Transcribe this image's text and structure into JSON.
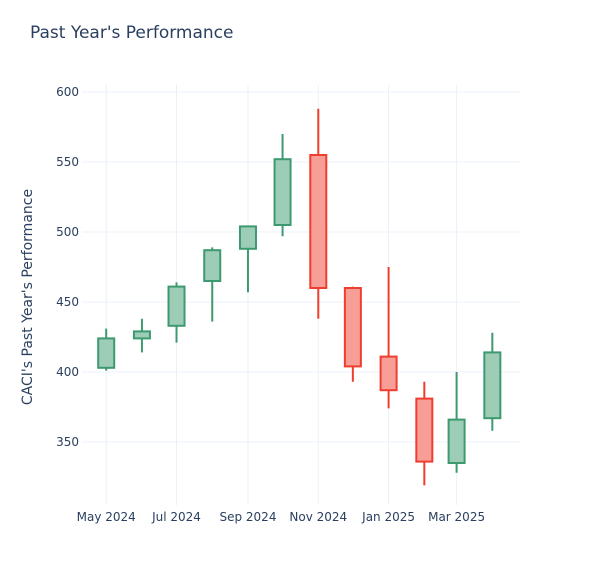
{
  "chart_data": {
    "type": "candlestick",
    "title": "Past Year's Performance",
    "ylabel": "CACI's Past Year's Performance",
    "xlabel": "",
    "ylim": [
      305,
      605
    ],
    "yticks": [
      350,
      400,
      450,
      500,
      550,
      600
    ],
    "xlim": [
      "2024-04-10",
      "2025-04-25"
    ],
    "xticks": [
      {
        "date": "2024-05-01",
        "label": "May 2024"
      },
      {
        "date": "2024-07-01",
        "label": "Jul 2024"
      },
      {
        "date": "2024-09-01",
        "label": "Sep 2024"
      },
      {
        "date": "2024-11-01",
        "label": "Nov 2024"
      },
      {
        "date": "2025-01-01",
        "label": "Jan 2025"
      },
      {
        "date": "2025-03-01",
        "label": "Mar 2025"
      }
    ],
    "colors": {
      "increasing_line": "#3d9970",
      "increasing_fill": "#9ecdb7",
      "decreasing_line": "#ef3e2f",
      "decreasing_fill": "#f79e97",
      "grid": "#ebf0f8",
      "text": "#2a3f5f"
    },
    "grid": true,
    "candles": [
      {
        "date": "2024-05-01",
        "open": 403,
        "high": 431,
        "low": 401,
        "close": 424
      },
      {
        "date": "2024-06-01",
        "open": 424,
        "high": 438,
        "low": 414,
        "close": 429
      },
      {
        "date": "2024-07-01",
        "open": 433,
        "high": 464,
        "low": 421,
        "close": 461
      },
      {
        "date": "2024-08-01",
        "open": 465,
        "high": 489,
        "low": 436,
        "close": 487
      },
      {
        "date": "2024-09-01",
        "open": 488,
        "high": 504,
        "low": 457,
        "close": 504
      },
      {
        "date": "2024-10-01",
        "open": 505,
        "high": 570,
        "low": 497,
        "close": 552
      },
      {
        "date": "2024-11-01",
        "open": 555,
        "high": 588,
        "low": 438,
        "close": 460
      },
      {
        "date": "2024-12-01",
        "open": 460,
        "high": 461,
        "low": 393,
        "close": 404
      },
      {
        "date": "2025-01-01",
        "open": 411,
        "high": 475,
        "low": 374,
        "close": 387
      },
      {
        "date": "2025-02-01",
        "open": 381,
        "high": 393,
        "low": 319,
        "close": 336
      },
      {
        "date": "2025-03-01",
        "open": 335,
        "high": 400,
        "low": 328,
        "close": 366
      },
      {
        "date": "2025-04-01",
        "open": 367,
        "high": 428,
        "low": 358,
        "close": 414
      }
    ]
  }
}
